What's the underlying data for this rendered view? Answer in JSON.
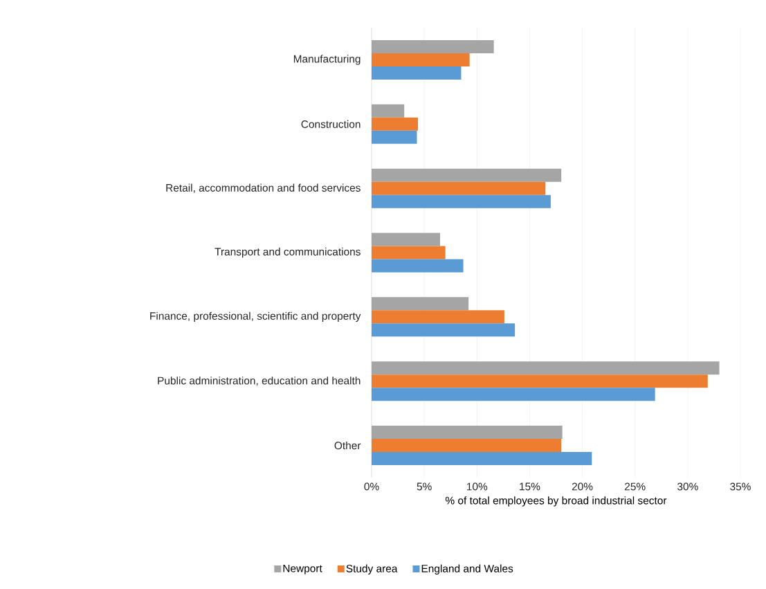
{
  "chart_data": {
    "type": "bar",
    "orientation": "horizontal",
    "xlabel": "% of total employees by broad industrial sector",
    "categories": [
      "Manufacturing",
      "Construction",
      "Retail, accommodation and food services",
      "Transport and communications",
      "Finance, professional, scientific and property",
      "Public administration, education and health",
      "Other"
    ],
    "series": [
      {
        "name": "Newport",
        "color": "#a5a5a5",
        "values": [
          11.6,
          3.1,
          18.0,
          6.5,
          9.2,
          33.0,
          18.1
        ]
      },
      {
        "name": "Study area",
        "color": "#ed7d31",
        "values": [
          9.3,
          4.4,
          16.5,
          7.0,
          12.6,
          31.9,
          18.0
        ]
      },
      {
        "name": "England and Wales",
        "color": "#5b9bd5",
        "values": [
          8.5,
          4.3,
          17.0,
          8.7,
          13.6,
          26.9,
          20.9
        ]
      }
    ],
    "xlim": [
      0,
      35
    ],
    "xticks": [
      {
        "value": 0,
        "label": "0%"
      },
      {
        "value": 5,
        "label": "5%"
      },
      {
        "value": 10,
        "label": "10%"
      },
      {
        "value": 15,
        "label": "15%"
      },
      {
        "value": 20,
        "label": "20%"
      },
      {
        "value": 25,
        "label": "25%"
      },
      {
        "value": 30,
        "label": "30%"
      },
      {
        "value": 35,
        "label": "35%"
      }
    ],
    "grid": "x",
    "legend": "bottom"
  }
}
